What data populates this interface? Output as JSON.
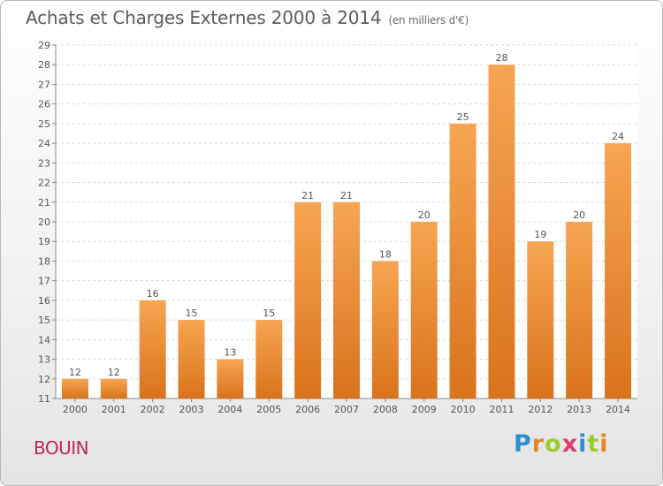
{
  "chart_data": {
    "type": "bar",
    "title": "Achats et Charges Externes 2000 à 2014",
    "subtitle": "(en milliers d'€)",
    "categories": [
      "2000",
      "2001",
      "2002",
      "2003",
      "2004",
      "2005",
      "2006",
      "2007",
      "2008",
      "2009",
      "2010",
      "2011",
      "2012",
      "2013",
      "2014"
    ],
    "values": [
      12,
      12,
      16,
      15,
      13,
      15,
      21,
      21,
      18,
      20,
      25,
      28,
      19,
      20,
      24
    ],
    "ylim": [
      11,
      29
    ],
    "yticks": [
      11,
      12,
      13,
      14,
      15,
      16,
      17,
      18,
      19,
      20,
      21,
      22,
      23,
      24,
      25,
      26,
      27,
      28,
      29
    ],
    "grid": true,
    "bar_color_top": "#f7a552",
    "bar_color_bottom": "#d9731c"
  },
  "footer": {
    "commune": "BOUIN",
    "logo_letters": [
      "P",
      "r",
      "o",
      "x",
      "i",
      "t",
      "i"
    ],
    "logo_colors": [
      "#2e8fd0",
      "#e5852a",
      "#9acd32",
      "#e03c6f",
      "#2e8fd0",
      "#9acd32",
      "#e5852a"
    ]
  }
}
